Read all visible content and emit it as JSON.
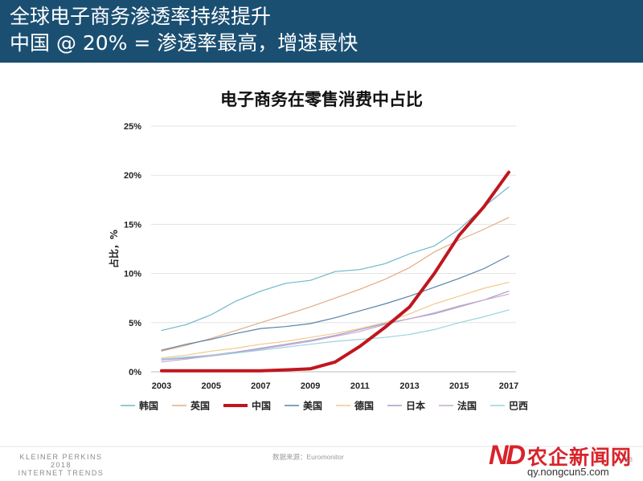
{
  "header": {
    "line1": "全球电子商务渗透率持续提升",
    "line2": "中国 @ 20% = 渗透率最高，增速最快"
  },
  "chart_data": {
    "type": "line",
    "title": "电子商务在零售消费中占比",
    "ylabel": "占比，%",
    "ylim": [
      0,
      25
    ],
    "y_ticks": [
      "0%",
      "5%",
      "10%",
      "15%",
      "20%",
      "25%"
    ],
    "x_tick_labels": [
      "2003",
      "2005",
      "2007",
      "2009",
      "2011",
      "2013",
      "2015",
      "2017"
    ],
    "x": [
      2003,
      2004,
      2005,
      2006,
      2007,
      2008,
      2009,
      2010,
      2011,
      2012,
      2013,
      2014,
      2015,
      2016,
      2017
    ],
    "grid": true,
    "legend_position": "bottom",
    "series": [
      {
        "name": "韩国",
        "color": "#6fb7c8",
        "width": 1.2,
        "values": [
          4.2,
          4.8,
          5.8,
          7.2,
          8.2,
          9.0,
          9.3,
          10.2,
          10.4,
          11.0,
          12.0,
          12.8,
          14.5,
          16.8,
          18.8
        ]
      },
      {
        "name": "英国",
        "color": "#e3ac84",
        "width": 1.2,
        "values": [
          2.1,
          2.7,
          3.4,
          4.2,
          5.0,
          5.8,
          6.6,
          7.5,
          8.4,
          9.4,
          10.6,
          12.2,
          13.4,
          14.5,
          15.7
        ]
      },
      {
        "name": "中国",
        "color": "#c0161e",
        "width": 4,
        "values": [
          0.1,
          0.1,
          0.1,
          0.1,
          0.1,
          0.2,
          0.3,
          1.0,
          2.6,
          4.5,
          6.6,
          10.0,
          13.9,
          16.8,
          20.3
        ]
      },
      {
        "name": "美国",
        "color": "#5882a8",
        "width": 1.2,
        "values": [
          2.2,
          2.8,
          3.3,
          3.9,
          4.4,
          4.6,
          4.9,
          5.5,
          6.2,
          6.9,
          7.7,
          8.6,
          9.5,
          10.5,
          11.8
        ]
      },
      {
        "name": "德国",
        "color": "#f2c98c",
        "width": 1.2,
        "values": [
          1.4,
          1.7,
          2.1,
          2.4,
          2.8,
          3.1,
          3.5,
          3.9,
          4.4,
          5.0,
          5.9,
          6.9,
          7.7,
          8.5,
          9.1
        ]
      },
      {
        "name": "日本",
        "color": "#a3a0c9",
        "width": 1.2,
        "values": [
          1.2,
          1.4,
          1.7,
          2.0,
          2.4,
          2.8,
          3.2,
          3.7,
          4.3,
          4.9,
          5.4,
          5.9,
          6.6,
          7.3,
          8.2
        ]
      },
      {
        "name": "法国",
        "color": "#c8a9cf",
        "width": 1.2,
        "values": [
          1.0,
          1.3,
          1.6,
          1.9,
          2.3,
          2.7,
          3.1,
          3.6,
          4.1,
          4.8,
          5.4,
          6.0,
          6.7,
          7.3,
          7.9
        ]
      },
      {
        "name": "巴西",
        "color": "#9ad4df",
        "width": 1.2,
        "values": [
          1.3,
          1.5,
          1.7,
          1.9,
          2.2,
          2.5,
          2.8,
          3.1,
          3.3,
          3.5,
          3.8,
          4.3,
          5.0,
          5.6,
          6.3
        ]
      }
    ]
  },
  "footer": {
    "brand_line1": "KLEINER PERKINS",
    "brand_line2": "2018",
    "brand_line3": "INTERNET TRENDS",
    "source": "数据来源：Euromonitor",
    "page_number": "18"
  },
  "watermark": {
    "logo": "ND",
    "name": "农企新闻网",
    "url": "qy.nongcun5.com"
  }
}
